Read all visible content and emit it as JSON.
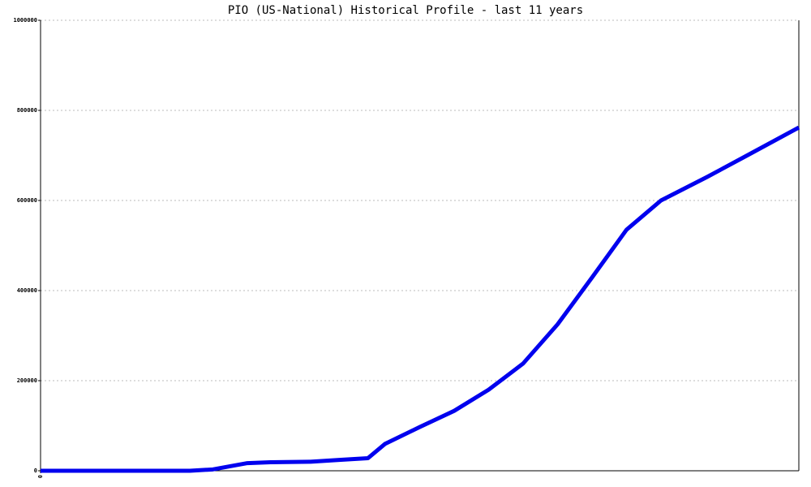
{
  "chart_data": {
    "type": "line",
    "title": "PIO (US-National) Historical Profile - last 11 years",
    "x": [
      0,
      26,
      30,
      36,
      40,
      47,
      52,
      57,
      60,
      66,
      72,
      78,
      84,
      90,
      96,
      102,
      108,
      116,
      123,
      132
    ],
    "series": [
      {
        "color": "#0000ee",
        "values": [
          0,
          0,
          3000,
          17000,
          19000,
          20000,
          24000,
          28000,
          60000,
          97000,
          133000,
          180000,
          238000,
          325000,
          429000,
          535000,
          600000,
          652000,
          700000,
          762000
        ]
      }
    ],
    "xlim": [
      0,
      132
    ],
    "xticks": [
      0
    ],
    "ylim": [
      0,
      1000000
    ],
    "yticks": [
      0,
      200000,
      400000,
      600000,
      800000,
      1000000
    ],
    "grid": true
  }
}
